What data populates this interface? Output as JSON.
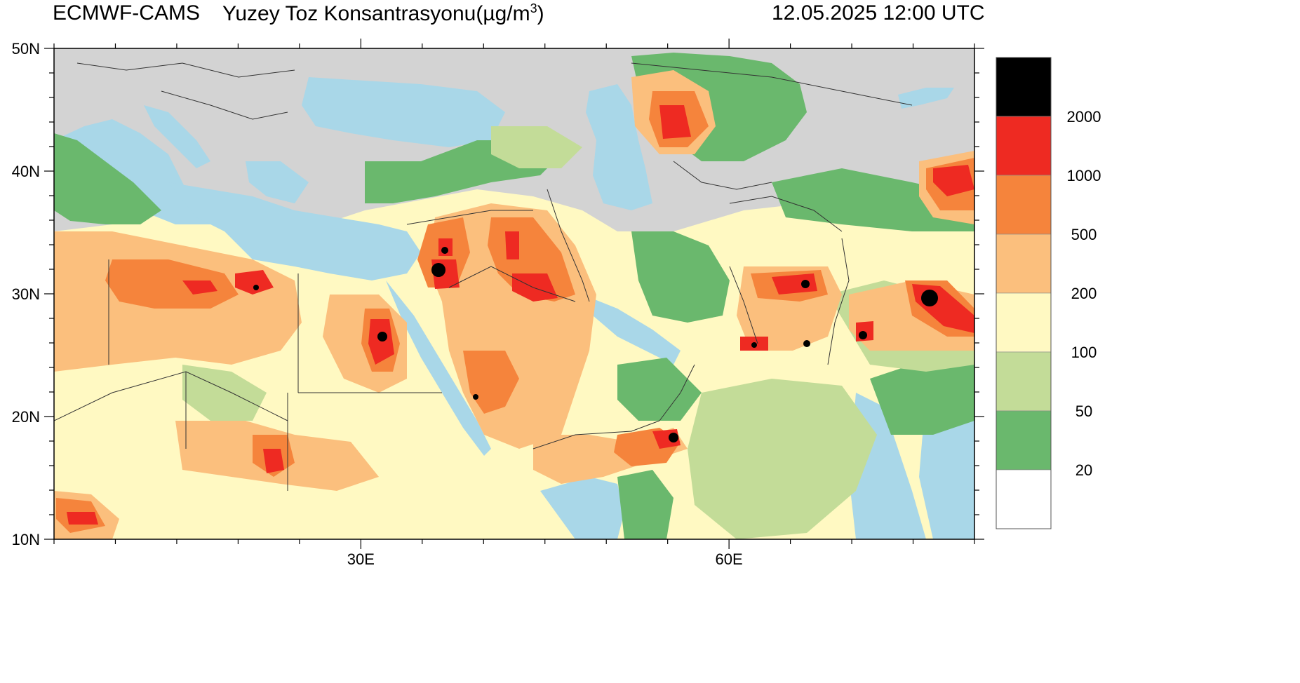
{
  "header": {
    "model": "ECMWF-CAMS",
    "variable": "Yuzey Toz Konsantrasyonu(µg/m",
    "unit_sup": "3",
    "variable_close": ")",
    "datetime": "12.05.2025 12:00 UTC"
  },
  "axes": {
    "y_ticks": [
      {
        "lat": 50,
        "label": "50N"
      },
      {
        "lat": 40,
        "label": "40N"
      },
      {
        "lat": 30,
        "label": "30N"
      },
      {
        "lat": 20,
        "label": "20N"
      },
      {
        "lat": 10,
        "label": "10N"
      }
    ],
    "x_ticks": [
      {
        "lon": 30,
        "label": "30E"
      },
      {
        "lon": 60,
        "label": "60E"
      }
    ],
    "lon_range": [
      5,
      80
    ],
    "lat_range": [
      10,
      50
    ]
  },
  "legend": {
    "bins": [
      {
        "color": "#000000",
        "label": "2000"
      },
      {
        "color": "#ee2a22",
        "label": "1000"
      },
      {
        "color": "#f5843c",
        "label": "500"
      },
      {
        "color": "#fbbf7d",
        "label": "200"
      },
      {
        "color": "#fff9c2",
        "label": "100"
      },
      {
        "color": "#c3dc98",
        "label": "50"
      },
      {
        "color": "#6ab86d",
        "label": "20"
      },
      {
        "color": "#ffffff",
        "label": ""
      }
    ]
  },
  "colors": {
    "land_no_data": "#d3d3d3",
    "water": "#a9d7e8",
    "border": "#333333"
  }
}
